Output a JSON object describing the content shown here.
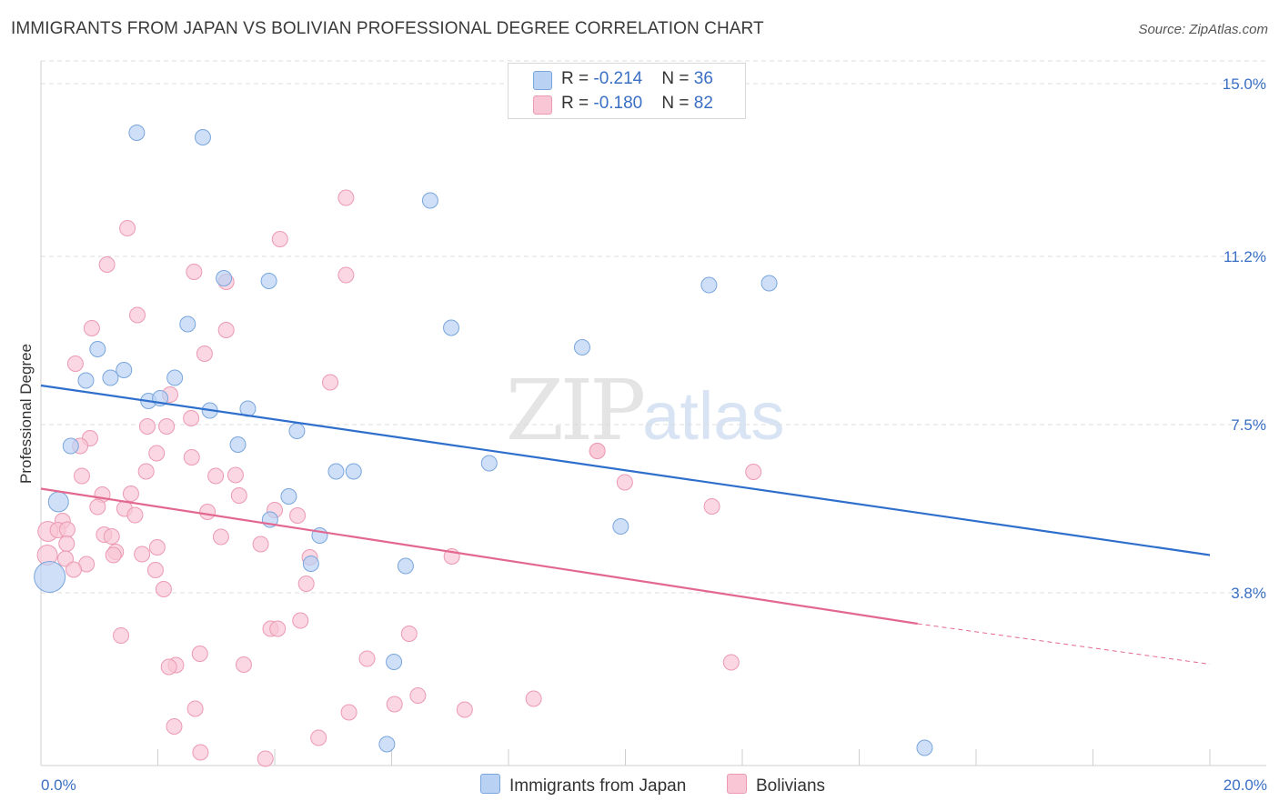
{
  "title": "IMMIGRANTS FROM JAPAN VS BOLIVIAN PROFESSIONAL DEGREE CORRELATION CHART",
  "source": "Source: ZipAtlas.com",
  "watermark": {
    "zip": "ZIP",
    "atlas": "atlas"
  },
  "colors": {
    "japan_fill": "#b9d2f3",
    "japan_stroke": "#7aa6dd",
    "japan_line": "#2e6fcc",
    "bolivia_fill": "#f8c6d5",
    "bolivia_stroke": "#ec9ab3",
    "bolivia_line": "#e2688f",
    "tick": "#3a6fc4",
    "grid": "#dcdcdc"
  },
  "legend": {
    "japan": {
      "r_label": "R = ",
      "r_value": "-0.214",
      "n_label": "N = ",
      "n_value": "36"
    },
    "bolivia": {
      "r_label": "R = ",
      "r_value": "-0.180",
      "n_label": "N = ",
      "n_value": "82"
    }
  },
  "bottom_legend": {
    "japan": "Immigrants from Japan",
    "bolivia": "Bolivians"
  },
  "chart_data": {
    "type": "scatter",
    "title": "IMMIGRANTS FROM JAPAN VS BOLIVIAN PROFESSIONAL DEGREE CORRELATION CHART",
    "xlabel": "",
    "ylabel": "Professional Degree",
    "xlim": [
      0,
      20
    ],
    "ylim": [
      0,
      15.5
    ],
    "x_tick_labels": [
      "0.0%",
      "20.0%"
    ],
    "y_ticks": [
      3.8,
      7.5,
      11.2,
      15.0
    ],
    "y_tick_labels": [
      "3.8%",
      "7.5%",
      "11.2%",
      "15.0%"
    ],
    "grid": true,
    "legend_placement": "top-center",
    "series": [
      {
        "name": "Immigrants from Japan",
        "points": [
          [
            1.64,
            13.92
          ],
          [
            2.77,
            13.82
          ],
          [
            6.66,
            12.43
          ],
          [
            3.13,
            10.72
          ],
          [
            3.9,
            10.66
          ],
          [
            11.43,
            10.57
          ],
          [
            12.46,
            10.61
          ],
          [
            2.51,
            9.71
          ],
          [
            7.02,
            9.63
          ],
          [
            0.97,
            9.16
          ],
          [
            9.26,
            9.2
          ],
          [
            1.42,
            8.7
          ],
          [
            0.77,
            8.47
          ],
          [
            1.19,
            8.53
          ],
          [
            2.29,
            8.53
          ],
          [
            1.84,
            8.02
          ],
          [
            2.04,
            8.08
          ],
          [
            2.89,
            7.81
          ],
          [
            3.54,
            7.85
          ],
          [
            4.38,
            7.36
          ],
          [
            0.51,
            7.03
          ],
          [
            3.37,
            7.06
          ],
          [
            5.05,
            6.47
          ],
          [
            5.35,
            6.47
          ],
          [
            7.67,
            6.65
          ],
          [
            4.24,
            5.92
          ],
          [
            0.3,
            5.8
          ],
          [
            3.92,
            5.41
          ],
          [
            9.92,
            5.26
          ],
          [
            4.77,
            5.06
          ],
          [
            4.62,
            4.44
          ],
          [
            6.24,
            4.39
          ],
          [
            0.15,
            4.15
          ],
          [
            6.04,
            2.28
          ],
          [
            5.92,
            0.47
          ],
          [
            15.12,
            0.39
          ]
        ]
      },
      {
        "name": "Bolivians",
        "points": [
          [
            1.48,
            11.82
          ],
          [
            5.22,
            12.49
          ],
          [
            4.09,
            11.58
          ],
          [
            1.13,
            11.02
          ],
          [
            2.62,
            10.86
          ],
          [
            5.22,
            10.79
          ],
          [
            3.17,
            10.64
          ],
          [
            1.65,
            9.91
          ],
          [
            0.87,
            9.62
          ],
          [
            3.17,
            9.58
          ],
          [
            2.8,
            9.06
          ],
          [
            0.59,
            8.84
          ],
          [
            4.95,
            8.43
          ],
          [
            2.21,
            8.16
          ],
          [
            2.57,
            7.64
          ],
          [
            1.82,
            7.46
          ],
          [
            2.15,
            7.46
          ],
          [
            0.84,
            7.2
          ],
          [
            0.67,
            7.03
          ],
          [
            1.98,
            6.87
          ],
          [
            2.58,
            6.78
          ],
          [
            9.52,
            6.92
          ],
          [
            1.8,
            6.47
          ],
          [
            3.33,
            6.39
          ],
          [
            2.99,
            6.37
          ],
          [
            0.7,
            6.37
          ],
          [
            9.99,
            6.23
          ],
          [
            12.19,
            6.46
          ],
          [
            1.05,
            5.96
          ],
          [
            1.54,
            5.98
          ],
          [
            3.39,
            5.94
          ],
          [
            0.97,
            5.69
          ],
          [
            1.43,
            5.65
          ],
          [
            4.0,
            5.62
          ],
          [
            2.85,
            5.58
          ],
          [
            1.61,
            5.51
          ],
          [
            4.39,
            5.5
          ],
          [
            11.48,
            5.7
          ],
          [
            0.37,
            5.38
          ],
          [
            0.12,
            5.15
          ],
          [
            0.29,
            5.18
          ],
          [
            0.45,
            5.19
          ],
          [
            1.08,
            5.08
          ],
          [
            1.21,
            5.04
          ],
          [
            3.08,
            5.03
          ],
          [
            0.44,
            4.88
          ],
          [
            3.76,
            4.87
          ],
          [
            1.99,
            4.8
          ],
          [
            1.28,
            4.7
          ],
          [
            1.73,
            4.65
          ],
          [
            1.24,
            4.63
          ],
          [
            7.03,
            4.6
          ],
          [
            4.6,
            4.58
          ],
          [
            0.11,
            4.63
          ],
          [
            0.42,
            4.55
          ],
          [
            0.78,
            4.43
          ],
          [
            0.56,
            4.31
          ],
          [
            1.96,
            4.3
          ],
          [
            4.54,
            4.0
          ],
          [
            2.1,
            3.88
          ],
          [
            4.44,
            3.19
          ],
          [
            3.93,
            3.01
          ],
          [
            4.05,
            3.01
          ],
          [
            6.3,
            2.9
          ],
          [
            1.37,
            2.86
          ],
          [
            2.72,
            2.46
          ],
          [
            5.58,
            2.35
          ],
          [
            2.31,
            2.21
          ],
          [
            3.47,
            2.22
          ],
          [
            11.81,
            2.27
          ],
          [
            2.19,
            2.17
          ],
          [
            6.45,
            1.54
          ],
          [
            8.43,
            1.47
          ],
          [
            6.05,
            1.35
          ],
          [
            2.64,
            1.25
          ],
          [
            7.25,
            1.23
          ],
          [
            5.27,
            1.17
          ],
          [
            2.28,
            0.86
          ],
          [
            4.75,
            0.61
          ],
          [
            2.73,
            0.29
          ],
          [
            3.84,
            0.15
          ],
          [
            9.52,
            6.92
          ]
        ]
      }
    ],
    "trend_lines": [
      {
        "name": "Immigrants from Japan",
        "x": [
          0,
          20
        ],
        "y": [
          8.36,
          4.63
        ]
      },
      {
        "name": "Bolivians",
        "x": [
          0,
          15
        ],
        "y": [
          6.09,
          3.12
        ],
        "dashed_to": [
          20,
          2.23
        ]
      }
    ]
  }
}
